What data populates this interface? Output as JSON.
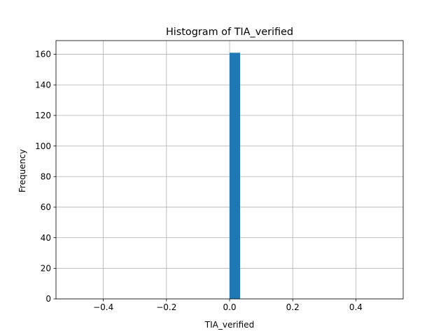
{
  "chart_data": {
    "type": "bar",
    "title": "Histogram of TIA_verified",
    "xlabel": "TIA_verified",
    "ylabel": "Frequency",
    "xlim": [
      -0.55,
      0.55
    ],
    "ylim": [
      0,
      168.95
    ],
    "xticks": [
      -0.4,
      -0.2,
      0.0,
      0.2,
      0.4
    ],
    "xtick_labels": [
      "−0.4",
      "−0.2",
      "0.0",
      "0.2",
      "0.4"
    ],
    "yticks": [
      0,
      20,
      40,
      60,
      80,
      100,
      120,
      140,
      160
    ],
    "ytick_labels": [
      "0",
      "20",
      "40",
      "60",
      "80",
      "100",
      "120",
      "140",
      "160"
    ],
    "grid": true,
    "bins": [
      {
        "x0": -0.5,
        "x1": -0.4667,
        "count": 0
      },
      {
        "x0": -0.4667,
        "x1": -0.4333,
        "count": 0
      },
      {
        "x0": -0.4333,
        "x1": -0.4,
        "count": 0
      },
      {
        "x0": -0.4,
        "x1": -0.3667,
        "count": 0
      },
      {
        "x0": -0.3667,
        "x1": -0.3333,
        "count": 0
      },
      {
        "x0": -0.3333,
        "x1": -0.3,
        "count": 0
      },
      {
        "x0": -0.3,
        "x1": -0.2667,
        "count": 0
      },
      {
        "x0": -0.2667,
        "x1": -0.2333,
        "count": 0
      },
      {
        "x0": -0.2333,
        "x1": -0.2,
        "count": 0
      },
      {
        "x0": -0.2,
        "x1": -0.1667,
        "count": 0
      },
      {
        "x0": -0.1667,
        "x1": -0.1333,
        "count": 0
      },
      {
        "x0": -0.1333,
        "x1": -0.1,
        "count": 0
      },
      {
        "x0": -0.1,
        "x1": -0.0667,
        "count": 0
      },
      {
        "x0": -0.0667,
        "x1": -0.0333,
        "count": 0
      },
      {
        "x0": -0.0333,
        "x1": 0.0,
        "count": 0
      },
      {
        "x0": 0.0,
        "x1": 0.0333,
        "count": 161
      },
      {
        "x0": 0.0333,
        "x1": 0.0667,
        "count": 0
      },
      {
        "x0": 0.0667,
        "x1": 0.1,
        "count": 0
      },
      {
        "x0": 0.1,
        "x1": 0.1333,
        "count": 0
      },
      {
        "x0": 0.1333,
        "x1": 0.1667,
        "count": 0
      },
      {
        "x0": 0.1667,
        "x1": 0.2,
        "count": 0
      },
      {
        "x0": 0.2,
        "x1": 0.2333,
        "count": 0
      },
      {
        "x0": 0.2333,
        "x1": 0.2667,
        "count": 0
      },
      {
        "x0": 0.2667,
        "x1": 0.3,
        "count": 0
      },
      {
        "x0": 0.3,
        "x1": 0.3333,
        "count": 0
      },
      {
        "x0": 0.3333,
        "x1": 0.3667,
        "count": 0
      },
      {
        "x0": 0.3667,
        "x1": 0.4,
        "count": 0
      },
      {
        "x0": 0.4,
        "x1": 0.4333,
        "count": 0
      },
      {
        "x0": 0.4333,
        "x1": 0.4667,
        "count": 0
      },
      {
        "x0": 0.4667,
        "x1": 0.5,
        "count": 0
      }
    ],
    "colors": {
      "bar": "#1f77b4",
      "grid": "#b0b0b0",
      "axis": "#000000"
    }
  }
}
